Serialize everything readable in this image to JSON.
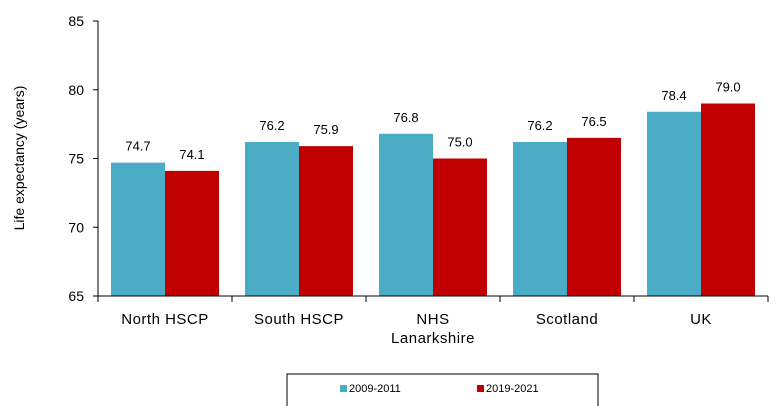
{
  "chart_data": {
    "type": "bar",
    "categories": [
      [
        "North HSCP"
      ],
      [
        "South HSCP"
      ],
      [
        "NHS",
        "Lanarkshire"
      ],
      [
        "Scotland"
      ],
      [
        "UK"
      ]
    ],
    "series": [
      {
        "name": "2009-2011",
        "color": "#4BACC6",
        "values": [
          74.7,
          76.2,
          76.8,
          76.2,
          78.4
        ],
        "labels": [
          "74.7",
          "76.2",
          "76.8",
          "76.2",
          "78.4"
        ]
      },
      {
        "name": "2019-2021",
        "color": "#C00000",
        "values": [
          74.1,
          75.9,
          75.0,
          76.5,
          79.0
        ],
        "labels": [
          "74.1",
          "75.9",
          "75.0",
          "76.5",
          "79.0"
        ]
      }
    ],
    "ylabel": "Life expectancy (years)",
    "ylim": [
      65,
      85
    ],
    "yticks": [
      65,
      70,
      75,
      80,
      85
    ],
    "ytick_labels": [
      "65",
      "70",
      "75",
      "80",
      "85"
    ],
    "grid": false,
    "legend_position": "bottom"
  }
}
